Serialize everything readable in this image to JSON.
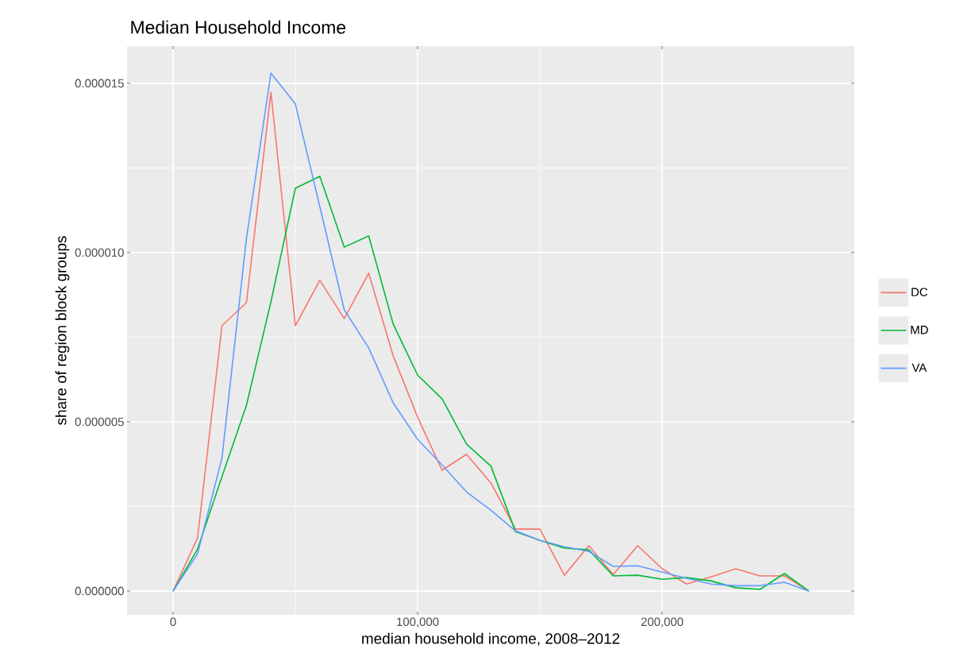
{
  "chart_data": {
    "type": "line",
    "title": "Median Household Income",
    "xlabel": "median household income, 2008–2012",
    "ylabel": "share of region block groups",
    "x": [
      0,
      10000,
      20000,
      30000,
      40000,
      50000,
      60000,
      70000,
      80000,
      90000,
      100000,
      110000,
      120000,
      130000,
      140000,
      150000,
      160000,
      170000,
      180000,
      190000,
      200000,
      210000,
      220000,
      230000,
      240000,
      250000,
      260000
    ],
    "series": [
      {
        "name": "DC",
        "color": "#f8766d",
        "values": [
          0,
          1.57e-06,
          7.84e-06,
          8.52e-06,
          1.474e-05,
          7.84e-06,
          9.18e-06,
          8.05e-06,
          9.39e-06,
          6.95e-06,
          5.14e-06,
          3.57e-06,
          4.04e-06,
          3.19e-06,
          1.83e-06,
          1.83e-06,
          4.7e-07,
          1.34e-06,
          4.9e-07,
          1.34e-06,
          6.6e-07,
          2.1e-07,
          4.2e-07,
          6.6e-07,
          4.5e-07,
          4.5e-07,
          0
        ]
      },
      {
        "name": "MD",
        "color": "#00ba38",
        "values": [
          0,
          1.24e-06,
          3.38e-06,
          5.49e-06,
          8.54e-06,
          1.19e-05,
          1.225e-05,
          1.016e-05,
          1.049e-05,
          7.89e-06,
          6.38e-06,
          5.68e-06,
          4.34e-06,
          3.69e-06,
          1.76e-06,
          1.5e-06,
          1.27e-06,
          1.22e-06,
          4.5e-07,
          4.7e-07,
          3.5e-07,
          4e-07,
          3e-07,
          1e-07,
          5e-08,
          5.2e-07,
          0
        ]
      },
      {
        "name": "VA",
        "color": "#619cff",
        "values": [
          0,
          1.1e-06,
          3.94e-06,
          1.042e-05,
          1.53e-05,
          1.439e-05,
          1.136e-05,
          8.31e-06,
          7.18e-06,
          5.56e-06,
          4.48e-06,
          3.73e-06,
          2.93e-06,
          2.39e-06,
          1.78e-06,
          1.5e-06,
          1.31e-06,
          1.17e-06,
          7.3e-07,
          7.5e-07,
          5.6e-07,
          3.8e-07,
          2.1e-07,
          1.6e-07,
          1.6e-07,
          2.6e-07,
          0
        ]
      }
    ],
    "xlim": [
      -18831,
      278571
    ],
    "ylim": [
      -7e-07,
      1.61e-05
    ],
    "xticks": [
      0,
      {
        "value": 100000,
        "label": "100,000"
      },
      {
        "value": 200000,
        "label": "200,000"
      }
    ],
    "yticks": [
      {
        "value": 0,
        "label": "0.000000"
      },
      {
        "value": 5e-06,
        "label": "0.000005"
      },
      {
        "value": 1e-05,
        "label": "0.000010"
      },
      {
        "value": 1.5e-05,
        "label": "0.000015"
      }
    ],
    "grid": true,
    "legend": "right",
    "marker": "none",
    "line_style": "solid"
  }
}
